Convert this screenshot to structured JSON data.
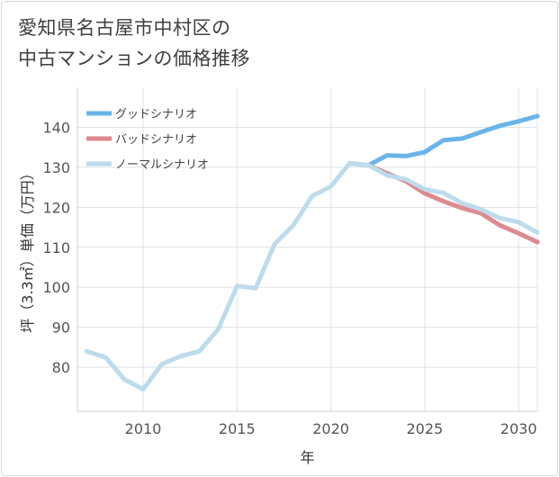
{
  "title": {
    "line1": "愛知県名古屋市中村区の",
    "line2": "中古マンションの価格推移"
  },
  "chart_data": {
    "type": "line",
    "xlabel": "年",
    "ylabel": "坪（3.3㎡）単価（万円）",
    "xlim": [
      2006.5,
      2031
    ],
    "ylim": [
      69,
      150
    ],
    "x_ticks": [
      2010,
      2015,
      2020,
      2025,
      2030
    ],
    "y_ticks": [
      80,
      90,
      100,
      110,
      120,
      130,
      140
    ],
    "grid": true,
    "legend_position": "top-left",
    "series": [
      {
        "name": "グッドシナリオ",
        "color": "#6ab4ea",
        "x": [
          2021,
          2022,
          2023,
          2024,
          2025,
          2026,
          2027,
          2028,
          2029,
          2030,
          2031
        ],
        "values": [
          131,
          130.5,
          133,
          132.8,
          133.8,
          136.8,
          137.2,
          138.8,
          140.4,
          141.5,
          142.8
        ]
      },
      {
        "name": "バッドシナリオ",
        "color": "#dd8a90",
        "x": [
          2021,
          2022,
          2023,
          2024,
          2025,
          2026,
          2027,
          2028,
          2029,
          2030,
          2031
        ],
        "values": [
          131,
          130.5,
          128.5,
          126.5,
          123.5,
          121.5,
          119.8,
          118.5,
          115.5,
          113.5,
          111.3
        ]
      },
      {
        "name": "ノーマルシナリオ",
        "color": "#bcdcec",
        "x": [
          2007,
          2008,
          2009,
          2010,
          2011,
          2012,
          2013,
          2014,
          2015,
          2016,
          2017,
          2018,
          2019,
          2020,
          2021,
          2022,
          2023,
          2024,
          2025,
          2026,
          2027,
          2028,
          2029,
          2030,
          2031
        ],
        "values": [
          84,
          82.5,
          77,
          74.5,
          80.8,
          82.8,
          84,
          89.5,
          100.3,
          99.8,
          110.8,
          115.5,
          122.8,
          125.2,
          131,
          130.5,
          128,
          127,
          124.5,
          123.6,
          121,
          119.5,
          117.3,
          116.3,
          113.7
        ]
      }
    ]
  }
}
